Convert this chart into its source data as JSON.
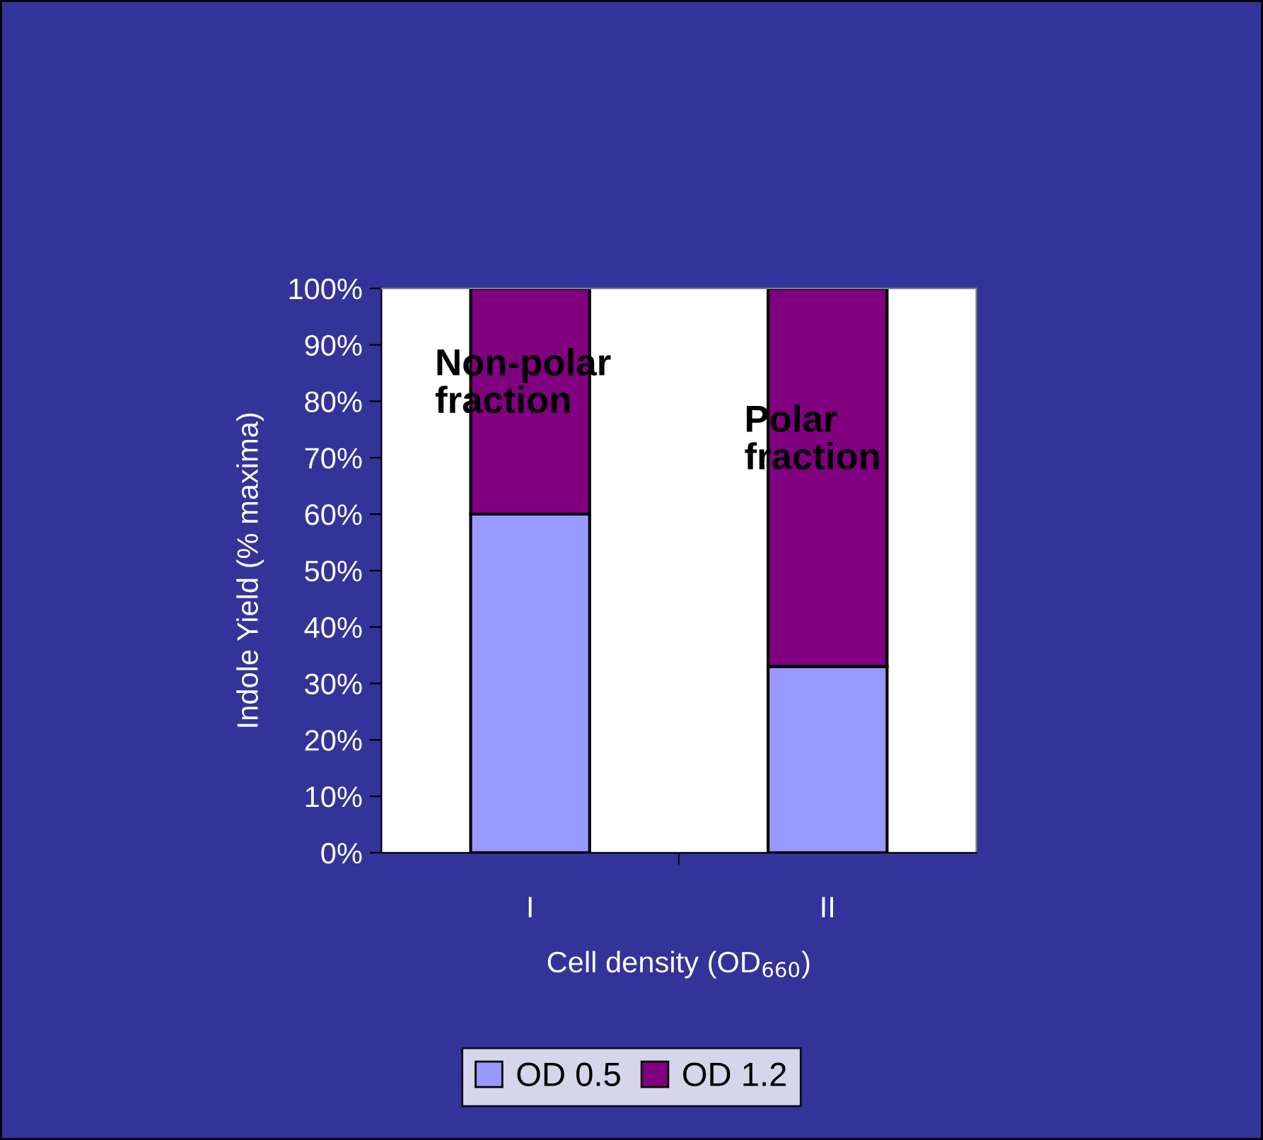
{
  "chart_data": {
    "type": "bar",
    "stacked": true,
    "xlabel": "Cell density (OD$_{660}$)",
    "ylabel": "Indole Yield (% maxima)",
    "categories": [
      "I",
      "II"
    ],
    "series": [
      {
        "name": "OD 0.5",
        "color": "#9999ff",
        "values": [
          60,
          33
        ]
      },
      {
        "name": "OD 1.2",
        "color": "#800080",
        "values": [
          40,
          67
        ]
      }
    ],
    "ylim": [
      0,
      100
    ],
    "yticks": [
      {
        "value": 0,
        "label": "0%"
      },
      {
        "value": 10,
        "label": "10%"
      },
      {
        "value": 20,
        "label": "20%"
      },
      {
        "value": 30,
        "label": "30%"
      },
      {
        "value": 40,
        "label": "40%"
      },
      {
        "value": 50,
        "label": "50%"
      },
      {
        "value": 60,
        "label": "60%"
      },
      {
        "value": 70,
        "label": "70%"
      },
      {
        "value": 80,
        "label": "80%"
      },
      {
        "value": 90,
        "label": "90%"
      },
      {
        "value": 100,
        "label": "100%"
      }
    ],
    "annotations": [
      "Non-polar\nfraction",
      "Polar\nfraction"
    ],
    "grid": false,
    "legend": "bottom"
  }
}
